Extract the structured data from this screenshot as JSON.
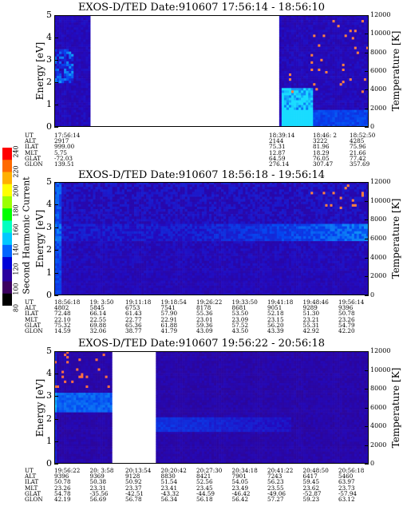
{
  "app": {
    "colorbar": {
      "label": "Second Harmonic Current",
      "ticks": [
        "240",
        "220",
        "200",
        "180",
        "160",
        "140",
        "120",
        "100",
        "80"
      ],
      "colors": [
        "#ff0000",
        "#ff6a00",
        "#ffb000",
        "#ffff00",
        "#9cff00",
        "#00ff00",
        "#00ffc0",
        "#00c8ff",
        "#0064ff",
        "#0000d8",
        "#2a00a0",
        "#3c0060",
        "#000000"
      ]
    }
  },
  "chart_data": [
    {
      "type": "heatmap",
      "title": "EXOS-D/TED   Date:910607   17:56:14 - 18:56:10",
      "ylabel": "Energy [eV]",
      "y2label": "Temperature [K]",
      "ylim": [
        0,
        5
      ],
      "y2lim": [
        0,
        12000
      ],
      "yticks": [
        "0",
        "1",
        "2",
        "3",
        "4",
        "5"
      ],
      "y2ticks": [
        "0",
        "2000",
        "4000",
        "6000",
        "8000",
        "10000",
        "12000"
      ],
      "row_names": [
        "UT",
        "ALT",
        "ILAT",
        "MLT",
        "GLAT",
        "GLON"
      ],
      "columns": [
        {
          "ut": "17:56:14",
          "alt": "2917",
          "ilat": "999.00",
          "mlt": "5.75",
          "glat": "-72.03",
          "glon": "139.51"
        },
        {
          "ut": "18:39:14",
          "alt": "2144",
          "ilat": "75.31",
          "mlt": "12.87",
          "glat": "64.59",
          "glon": "276.14"
        },
        {
          "ut": "18:46: 2",
          "alt": "3222",
          "ilat": "81.96",
          "mlt": "18.29",
          "glat": "76.05",
          "glon": "307.47"
        },
        {
          "ut": "18:52:50",
          "alt": "4285",
          "ilat": "75.96",
          "mlt": "21.66",
          "glat": "77.42",
          "glon": "357.69"
        }
      ],
      "gaps": [
        [
          0.11,
          0.71
        ]
      ]
    },
    {
      "type": "heatmap",
      "title": "EXOS-D/TED   Date:910607   18:56:18 - 19:56:14",
      "ylabel": "Energy [eV]",
      "y2label": "Temperature [K]",
      "ylim": [
        0,
        5
      ],
      "y2lim": [
        0,
        12000
      ],
      "yticks": [
        "0",
        "1",
        "2",
        "3",
        "4",
        "5"
      ],
      "y2ticks": [
        "0",
        "2000",
        "4000",
        "6000",
        "8000",
        "10000",
        "12000"
      ],
      "row_names": [
        "UT",
        "ALT",
        "ILAT",
        "MLT",
        "GLAT",
        "GLON"
      ],
      "columns": [
        {
          "ut": "18:56:18",
          "alt": "4802",
          "ilat": "72.48",
          "mlt": "22.10",
          "glat": "75.32",
          "glon": "14.59"
        },
        {
          "ut": "19: 3:50",
          "alt": "5845",
          "ilat": "66.14",
          "mlt": "22.55",
          "glat": "69.88",
          "glon": "32.06"
        },
        {
          "ut": "19:11:18",
          "alt": "6753",
          "ilat": "61.43",
          "mlt": "22.77",
          "glat": "65.36",
          "glon": "38.77"
        },
        {
          "ut": "19:18:54",
          "alt": "7541",
          "ilat": "57.90",
          "mlt": "22.91",
          "glat": "61.88",
          "glon": "41.79"
        },
        {
          "ut": "19:26:22",
          "alt": "8178",
          "ilat": "55.36",
          "mlt": "23.01",
          "glat": "59.36",
          "glon": "43.09"
        },
        {
          "ut": "19:33:50",
          "alt": "8681",
          "ilat": "53.50",
          "mlt": "23.09",
          "glat": "57.52",
          "glon": "43.50"
        },
        {
          "ut": "19:41:18",
          "alt": "9051",
          "ilat": "52.18",
          "mlt": "23.15",
          "glat": "56.20",
          "glon": "43.39"
        },
        {
          "ut": "19:48:46",
          "alt": "9289",
          "ilat": "51.30",
          "mlt": "23.21",
          "glat": "55.31",
          "glon": "42.92"
        },
        {
          "ut": "19:56:14",
          "alt": "9396",
          "ilat": "50.78",
          "mlt": "23.26",
          "glat": "54.79",
          "glon": "42.20"
        }
      ],
      "gaps": []
    },
    {
      "type": "heatmap",
      "title": "EXOS-D/TED   Date:910607   19:56:22 - 20:56:18",
      "ylabel": "Energy [eV]",
      "y2label": "Temperature [K]",
      "ylim": [
        0,
        5
      ],
      "y2lim": [
        0,
        12000
      ],
      "yticks": [
        "0",
        "1",
        "2",
        "3",
        "4",
        "5"
      ],
      "y2ticks": [
        "0",
        "2000",
        "4000",
        "6000",
        "8000",
        "10000",
        "12000"
      ],
      "row_names": [
        "UT",
        "ALT",
        "ILAT",
        "MLT",
        "GLAT",
        "GLON"
      ],
      "columns": [
        {
          "ut": "19:56:22",
          "alt": "9396",
          "ilat": "50.78",
          "mlt": "23.26",
          "glat": "54.78",
          "glon": "42.19"
        },
        {
          "ut": "20: 3:58",
          "alt": "9369",
          "ilat": "50.38",
          "mlt": "23.31",
          "glat": "-35.56",
          "glon": "56.69"
        },
        {
          "ut": "20:13:54",
          "alt": "9128",
          "ilat": "50.92",
          "mlt": "23.37",
          "glat": "-42.51",
          "glon": "56.78"
        },
        {
          "ut": "20:20:42",
          "alt": "8830",
          "ilat": "51.54",
          "mlt": "23.41",
          "glat": "-43.32",
          "glon": "56.34"
        },
        {
          "ut": "20:27:30",
          "alt": "8421",
          "ilat": "52.56",
          "mlt": "23.45",
          "glat": "-44.59",
          "glon": "56.18"
        },
        {
          "ut": "20:34:18",
          "alt": "7901",
          "ilat": "54.05",
          "mlt": "23.49",
          "glat": "-46.42",
          "glon": "56.42"
        },
        {
          "ut": "20:41:22",
          "alt": "7243",
          "ilat": "56.23",
          "mlt": "23.55",
          "glat": "-49.06",
          "glon": "57.27"
        },
        {
          "ut": "20:48:50",
          "alt": "6417",
          "ilat": "59.45",
          "mlt": "23.62",
          "glat": "-52.87",
          "glon": "59.23"
        },
        {
          "ut": "20:56:18",
          "alt": "5460",
          "ilat": "63.97",
          "mlt": "23.73",
          "glat": "-57.94",
          "glon": "63.12"
        }
      ],
      "gaps": [
        [
          0.18,
          0.32
        ]
      ]
    }
  ]
}
